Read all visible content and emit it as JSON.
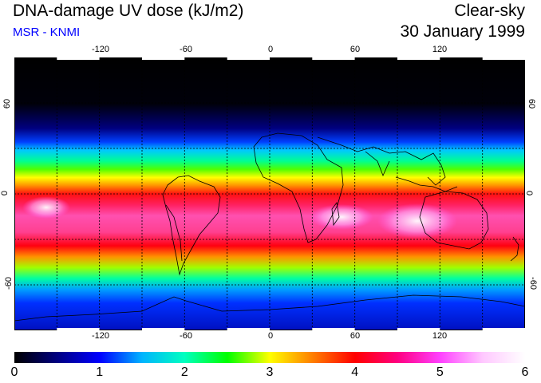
{
  "header": {
    "title": "DNA-damage UV dose (kJ/m2)",
    "source": "MSR - KNMI",
    "sky_condition": "Clear-sky",
    "date": "30 January 1999"
  },
  "map": {
    "lon_range": [
      -180,
      180
    ],
    "lat_range": [
      -90,
      90
    ],
    "top_lon_labels": [
      "-120",
      "-60",
      "0",
      "60",
      "120"
    ],
    "bottom_lon_labels": [
      "-120",
      "-60",
      "0",
      "60",
      "120"
    ],
    "left_lat_labels": [
      "60",
      "0",
      "-60"
    ],
    "right_lat_labels": [
      "60",
      "0",
      "-60"
    ],
    "grid_lons": [
      -150,
      -120,
      -90,
      -60,
      -30,
      0,
      30,
      60,
      90,
      120,
      150
    ],
    "grid_lats": [
      -60,
      -30,
      0,
      30,
      60
    ]
  },
  "colorbar": {
    "min": 0,
    "max": 6,
    "labels": [
      "0",
      "1",
      "2",
      "3",
      "4",
      "5",
      "6"
    ],
    "colors": [
      "#000000",
      "#000080",
      "#0000ff",
      "#00b4ff",
      "#00ffc0",
      "#00ff00",
      "#ffff00",
      "#ff8000",
      "#ff0000",
      "#ff0080",
      "#ff40ff",
      "#ffc8ff",
      "#ffffff"
    ]
  }
}
